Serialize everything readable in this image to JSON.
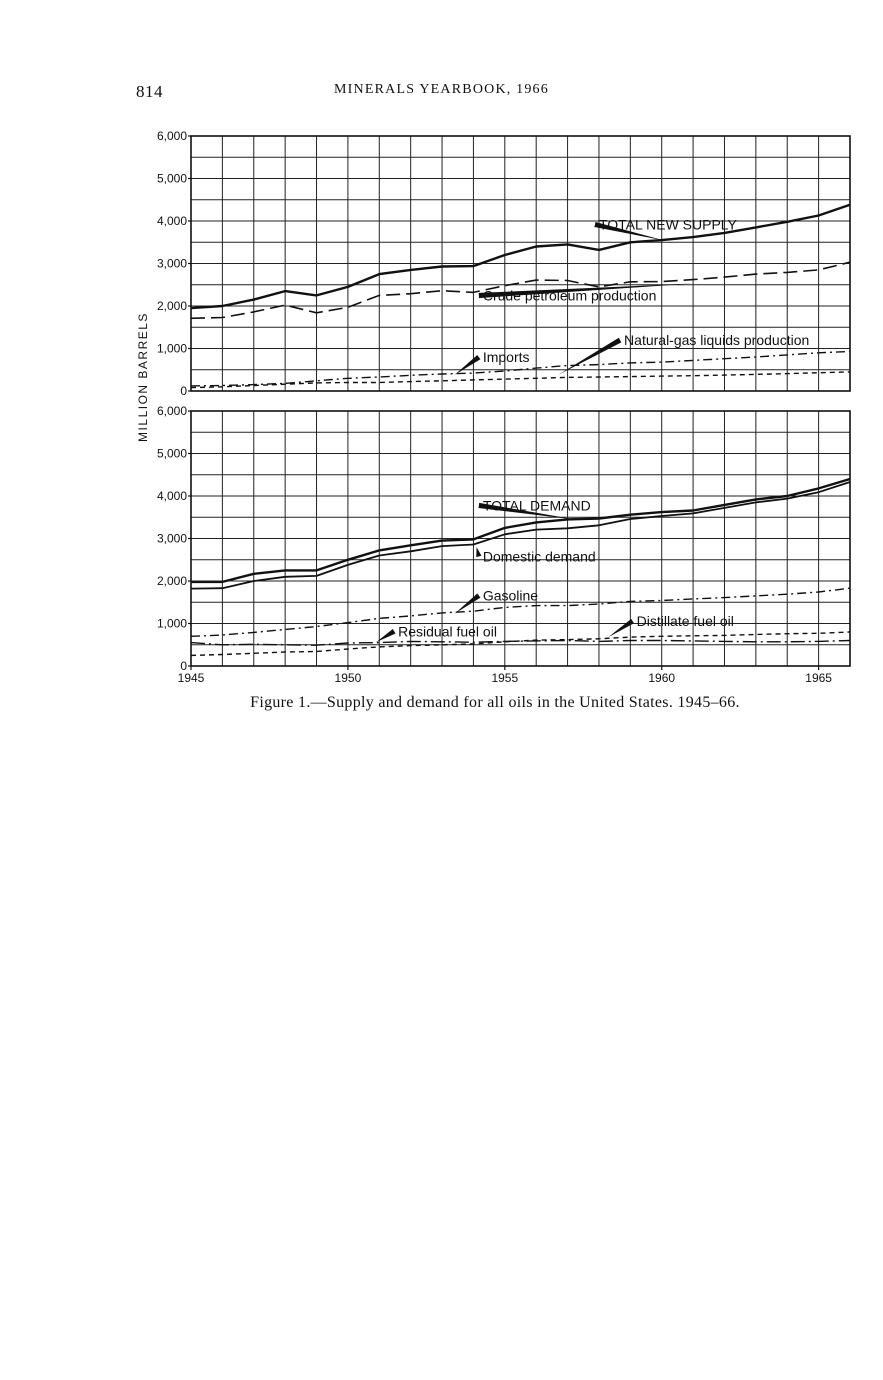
{
  "header": {
    "page_number": "814",
    "running_head": "MINERALS YEARBOOK, 1966"
  },
  "caption": "Figure 1.—Supply and demand for all oils in the United States. 1945–66.",
  "chart_data": {
    "type": "line",
    "ylabel": "MILLION BARRELS",
    "xlim": [
      1945,
      1966
    ],
    "x_tick_values": [
      1945,
      1950,
      1955,
      1960,
      1965
    ],
    "x_tick_labels": [
      "1945",
      "1950",
      "1955",
      "1960",
      "1965"
    ],
    "x": [
      1945,
      1946,
      1947,
      1948,
      1949,
      1950,
      1951,
      1952,
      1953,
      1954,
      1955,
      1956,
      1957,
      1958,
      1959,
      1960,
      1961,
      1962,
      1963,
      1964,
      1965,
      1966
    ],
    "grid": true,
    "panels": [
      {
        "ylim": [
          0,
          6000
        ],
        "y_tick_values": [
          0,
          1000,
          2000,
          3000,
          4000,
          5000,
          6000
        ],
        "y_tick_labels": [
          "0",
          "1,000",
          "2,000",
          "3,000",
          "4,000",
          "5,000",
          "6,000"
        ],
        "series": [
          {
            "name": "TOTAL NEW SUPPLY",
            "style": "solid-heavy",
            "values": [
              1950,
              2000,
              2150,
              2350,
              2250,
              2450,
              2750,
              2850,
              2930,
              2940,
              3200,
              3400,
              3450,
              3320,
              3500,
              3550,
              3620,
              3720,
              3850,
              3980,
              4130,
              4380
            ],
            "label_data": [
              1958.0,
              3800
            ],
            "pointer_data": [
              1960.1,
              3540
            ]
          },
          {
            "name": "Crude petroleum production",
            "style": "long-dash",
            "values": [
              1710,
              1730,
              1860,
              2020,
              1840,
              1970,
              2250,
              2290,
              2360,
              2320,
              2480,
              2610,
              2600,
              2450,
              2570,
              2575,
              2620,
              2680,
              2750,
              2790,
              2850,
              3030
            ],
            "label_data": [
              1954.3,
              2130
            ],
            "pointer_data": [
              1961.0,
              2530
            ]
          },
          {
            "name": "Natural-gas liquids production",
            "style": "dash-dot",
            "values": [
              120,
              130,
              150,
              180,
              240,
              300,
              330,
              370,
              400,
              420,
              470,
              540,
              600,
              620,
              660,
              680,
              720,
              760,
              800,
              850,
              900,
              930
            ],
            "label_data": [
              1958.8,
              1080
            ],
            "pointer_data": [
              1956.7,
              380
            ]
          },
          {
            "name": "Imports",
            "style": "short-dash",
            "values": [
              80,
              100,
              130,
              160,
              190,
              200,
              200,
              220,
              240,
              260,
              280,
              300,
              320,
              330,
              340,
              350,
              360,
              375,
              390,
              410,
              430,
              450
            ],
            "label_data": [
              1954.3,
              680
            ],
            "pointer_data": [
              1953.4,
              380
            ]
          }
        ]
      },
      {
        "ylim": [
          0,
          6000
        ],
        "y_tick_values": [
          0,
          1000,
          2000,
          3000,
          4000,
          5000,
          6000
        ],
        "y_tick_labels": [
          "0",
          "1,000",
          "2,000",
          "3,000",
          "4,000",
          "5,000",
          "6,000"
        ],
        "series": [
          {
            "name": "TOTAL DEMAND",
            "style": "solid-heavy",
            "values": [
              1980,
              1980,
              2170,
              2250,
              2250,
              2500,
              2720,
              2840,
              2950,
              2980,
              3250,
              3380,
              3450,
              3470,
              3560,
              3620,
              3660,
              3790,
              3920,
              4000,
              4180,
              4400
            ],
            "label_data": [
              1954.3,
              3660
            ],
            "pointer_data": [
              1957.3,
              3440
            ]
          },
          {
            "name": "Domestic demand",
            "style": "solid",
            "values": [
              1820,
              1830,
              2000,
              2100,
              2120,
              2380,
              2600,
              2700,
              2820,
              2860,
              3100,
              3210,
              3240,
              3310,
              3460,
              3530,
              3590,
              3720,
              3850,
              3940,
              4090,
              4330
            ],
            "label_data": [
              1954.3,
              2460
            ],
            "pointer_data": [
              1954.1,
              2800
            ]
          },
          {
            "name": "Gasoline",
            "style": "dash-dot",
            "values": [
              700,
              730,
              790,
              860,
              930,
              1020,
              1120,
              1180,
              1250,
              1290,
              1380,
              1420,
              1420,
              1460,
              1520,
              1540,
              1580,
              1610,
              1650,
              1690,
              1740,
              1830
            ],
            "label_data": [
              1954.3,
              1540
            ],
            "pointer_data": [
              1953.4,
              1230
            ]
          },
          {
            "name": "Residual fuel oil",
            "style": "long-dash-dot",
            "values": [
              550,
              500,
              510,
              500,
              490,
              540,
              550,
              580,
              570,
              560,
              580,
              590,
              600,
              580,
              600,
              600,
              590,
              580,
              570,
              570,
              580,
              600
            ],
            "label_data": [
              1951.6,
              700
            ],
            "pointer_data": [
              1950.9,
              560
            ]
          },
          {
            "name": "Distillate fuel oil",
            "style": "short-dash",
            "values": [
              250,
              270,
              300,
              330,
              340,
              400,
              450,
              480,
              500,
              520,
              570,
              610,
              620,
              640,
              680,
              700,
              710,
              720,
              740,
              760,
              770,
              800
            ],
            "label_data": [
              1959.2,
              940
            ],
            "pointer_data": [
              1958.3,
              680
            ]
          }
        ]
      }
    ]
  }
}
